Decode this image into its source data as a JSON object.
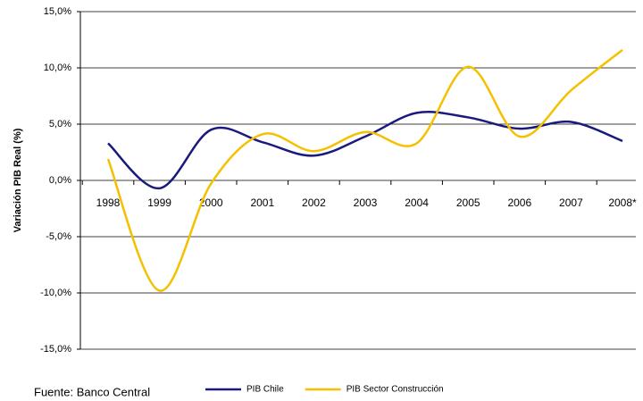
{
  "chart_data": {
    "type": "line",
    "y_label": "Variación PIB Real (%)",
    "source": "Fuente: Banco Central",
    "categories": [
      "1998",
      "1999",
      "2000",
      "2001",
      "2002",
      "2003",
      "2004",
      "2005",
      "2006",
      "2007",
      "2008*"
    ],
    "series": [
      {
        "name": "PIB Chile",
        "color": "#1a1a7e",
        "values": [
          3.3,
          -0.7,
          4.5,
          3.4,
          2.2,
          3.9,
          6.0,
          5.6,
          4.6,
          5.2,
          3.5
        ]
      },
      {
        "name": "PIB Sector Construcción",
        "color": "#f5c000",
        "values": [
          1.9,
          -9.8,
          -0.3,
          4.1,
          2.6,
          4.3,
          3.3,
          10.1,
          3.9,
          8.0,
          11.6
        ]
      }
    ],
    "ylim": [
      -15,
      15
    ],
    "yticks": [
      {
        "value": -15,
        "label": "-15,0%"
      },
      {
        "value": -10,
        "label": "-10,0%"
      },
      {
        "value": -5,
        "label": "-5,0%"
      },
      {
        "value": 0,
        "label": "0,0%"
      },
      {
        "value": 5,
        "label": "5,0%"
      },
      {
        "value": 10,
        "label": "10,0%"
      },
      {
        "value": 15,
        "label": "15,0%"
      }
    ],
    "grid": true
  }
}
